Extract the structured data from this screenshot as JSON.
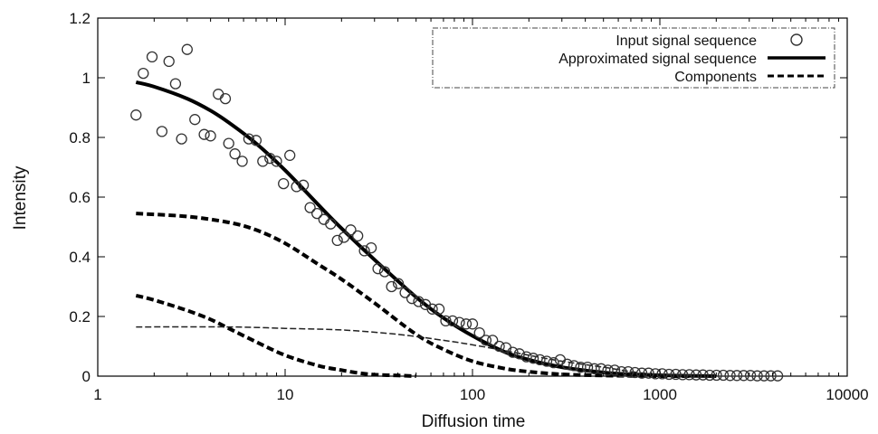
{
  "chart_data": {
    "type": "scatter",
    "xlabel": "Diffusion time",
    "ylabel": "Intensity",
    "xscale": "log",
    "xlim": [
      1,
      10000
    ],
    "ylim": [
      0,
      1.2
    ],
    "xticks": [
      1,
      10,
      100,
      1000,
      10000
    ],
    "xtick_labels": [
      "1",
      "10",
      "100",
      "1000",
      "10000"
    ],
    "yticks": [
      0,
      0.2,
      0.4,
      0.6,
      0.8,
      1,
      1.2
    ],
    "ytick_labels": [
      "0",
      "0.2",
      "0.4",
      "0.6",
      "0.8",
      "1",
      "1.2"
    ],
    "grid": false,
    "legend_position": "top-right",
    "legend": [
      {
        "label": "Input signal sequence",
        "style": "open-circle"
      },
      {
        "label": "Approximated signal sequence",
        "style": "solid"
      },
      {
        "label": "Components",
        "style": "dashed"
      }
    ],
    "series": [
      {
        "name": "Input signal sequence",
        "kind": "markers",
        "x": [
          1.6,
          1.75,
          1.95,
          2.2,
          2.4,
          2.6,
          2.8,
          3.0,
          3.3,
          3.7,
          4.0,
          4.4,
          4.8,
          5.0,
          5.4,
          5.9,
          6.4,
          7.0,
          7.6,
          8.3,
          9.0,
          9.8,
          10.6,
          11.5,
          12.5,
          13.6,
          14.8,
          16.1,
          17.5,
          19.0,
          20.6,
          22.4,
          24.4,
          26.5,
          28.8,
          31.3,
          34.0,
          37.0,
          40.2,
          43.7,
          47.5,
          51.6,
          56.1,
          61.0,
          66.3,
          72.0,
          78.3,
          85.1,
          92.5,
          100,
          109,
          118,
          128,
          139,
          151,
          164,
          178,
          194,
          211,
          229,
          249,
          271,
          294,
          320,
          348,
          378,
          411,
          447,
          486,
          528,
          574,
          624,
          678,
          737,
          801,
          871,
          947,
          1029,
          1119,
          1216,
          1322,
          1437,
          1562,
          1698,
          1846,
          2006,
          2181,
          2371,
          2577,
          2801,
          3045,
          3310,
          3598,
          3911,
          4252
        ],
        "y": [
          0.875,
          1.015,
          1.07,
          0.82,
          1.055,
          0.98,
          0.795,
          1.095,
          0.86,
          0.81,
          0.805,
          0.945,
          0.93,
          0.78,
          0.745,
          0.72,
          0.795,
          0.79,
          0.72,
          0.73,
          0.72,
          0.645,
          0.74,
          0.635,
          0.64,
          0.565,
          0.545,
          0.525,
          0.51,
          0.455,
          0.465,
          0.49,
          0.47,
          0.42,
          0.43,
          0.36,
          0.35,
          0.3,
          0.31,
          0.28,
          0.26,
          0.25,
          0.24,
          0.225,
          0.225,
          0.185,
          0.185,
          0.18,
          0.175,
          0.175,
          0.145,
          0.12,
          0.12,
          0.1,
          0.095,
          0.08,
          0.075,
          0.065,
          0.06,
          0.055,
          0.05,
          0.045,
          0.055,
          0.04,
          0.035,
          0.03,
          0.03,
          0.025,
          0.025,
          0.02,
          0.02,
          0.015,
          0.015,
          0.012,
          0.01,
          0.01,
          0.008,
          0.008,
          0.006,
          0.006,
          0.005,
          0.005,
          0.004,
          0.004,
          0.003,
          0.003,
          0.003,
          0.002,
          0.002,
          0.002,
          0.002,
          0.001,
          0.001,
          0.001,
          0.001
        ]
      },
      {
        "name": "Approximated signal sequence",
        "kind": "line",
        "style": "solid",
        "x": [
          1.6,
          2,
          3,
          4,
          5,
          7,
          10,
          15,
          20,
          30,
          50,
          70,
          100,
          150,
          200,
          300,
          500,
          700,
          1000,
          1500,
          2000
        ],
        "y": [
          0.985,
          0.97,
          0.93,
          0.89,
          0.85,
          0.78,
          0.69,
          0.575,
          0.495,
          0.39,
          0.265,
          0.195,
          0.135,
          0.08,
          0.055,
          0.03,
          0.012,
          0.006,
          0.003,
          0.001,
          0.0
        ]
      },
      {
        "name": "Components",
        "kind": "line",
        "style": "dashed-thick",
        "x": [
          1.6,
          3,
          5,
          7,
          10,
          15,
          20,
          30,
          50,
          70,
          100,
          150,
          200,
          300,
          500,
          700,
          1000,
          1500
        ],
        "y": [
          0.545,
          0.535,
          0.515,
          0.49,
          0.445,
          0.375,
          0.325,
          0.245,
          0.14,
          0.09,
          0.05,
          0.025,
          0.015,
          0.006,
          0.002,
          0.001,
          0.0,
          0.0
        ]
      },
      {
        "name": "Components",
        "kind": "line",
        "style": "dashed-thick",
        "x": [
          1.6,
          2,
          3,
          4,
          5,
          7,
          10,
          15,
          20,
          25,
          30,
          40,
          50
        ],
        "y": [
          0.27,
          0.255,
          0.22,
          0.19,
          0.16,
          0.115,
          0.07,
          0.035,
          0.02,
          0.01,
          0.005,
          0.002,
          0.0
        ]
      },
      {
        "name": "Components",
        "kind": "line",
        "style": "dashed-thin",
        "x": [
          1.6,
          5,
          10,
          20,
          40,
          70,
          100,
          150,
          200,
          300,
          500,
          700,
          1000,
          1500
        ],
        "y": [
          0.165,
          0.165,
          0.16,
          0.155,
          0.14,
          0.12,
          0.105,
          0.085,
          0.07,
          0.05,
          0.03,
          0.015,
          0.006,
          0.002
        ]
      }
    ]
  }
}
